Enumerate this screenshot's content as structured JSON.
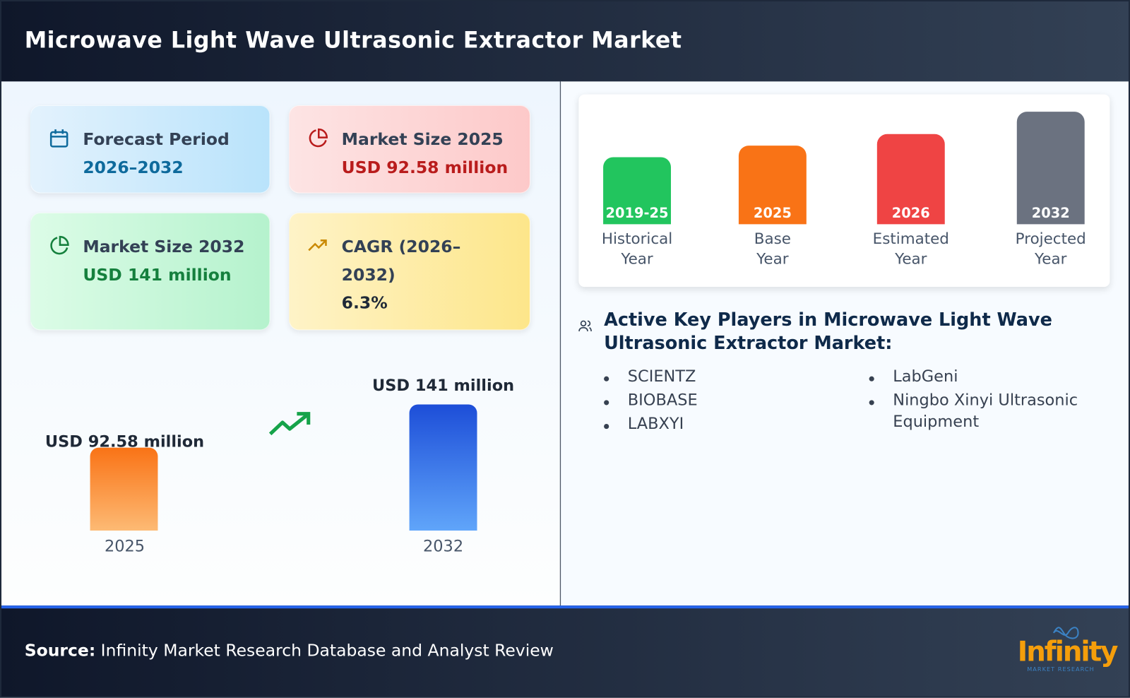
{
  "header": {
    "title": "Microwave Light Wave Ultrasonic Extractor Market"
  },
  "cards": [
    {
      "label": "Forecast Period",
      "value": "2026–2032",
      "icon": "calendar-icon",
      "color": "#0e6a9c"
    },
    {
      "label": "Market Size 2025",
      "value": "USD 92.58 million",
      "icon": "pie-chart-icon",
      "color": "#b91c1c"
    },
    {
      "label": "Market Size 2032",
      "value": "USD 141 million",
      "icon": "pie-chart-icon",
      "color": "#15803d"
    },
    {
      "label": "CAGR (2026–2032)",
      "value": "6.3%",
      "icon": "trending-up-icon",
      "color": "#1f2937"
    }
  ],
  "comparison": {
    "bars": [
      {
        "year": "2025",
        "label": "USD 92.58 million",
        "value": 92.58,
        "color": "#f97316"
      },
      {
        "year": "2032",
        "label": "USD 141 million",
        "value": 141,
        "color": "#1d4ed8"
      }
    ]
  },
  "timeline": [
    {
      "tag": "2019-25",
      "line1": "Historical",
      "line2": "Year",
      "color": "#22c55e"
    },
    {
      "tag": "2025",
      "line1": "Base",
      "line2": "Year",
      "color": "#f97316"
    },
    {
      "tag": "2026",
      "line1": "Estimated",
      "line2": "Year",
      "color": "#ef4444"
    },
    {
      "tag": "2032",
      "line1": "Projected",
      "line2": "Year",
      "color": "#6b7280"
    }
  ],
  "players": {
    "heading": "Active Key Players in Microwave Light Wave Ultrasonic Extractor Market:",
    "col1": [
      "SCIENTZ",
      "BIOBASE",
      "LABXYI"
    ],
    "col2": [
      "LabGeni",
      "Ningbo Xinyi Ultrasonic Equipment"
    ]
  },
  "footer": {
    "source_label": "Source:",
    "source_text": " Infinity Market Research Database and Analyst Review",
    "logo_text": "Infinity",
    "logo_sub": "MARKET RESEARCH"
  }
}
